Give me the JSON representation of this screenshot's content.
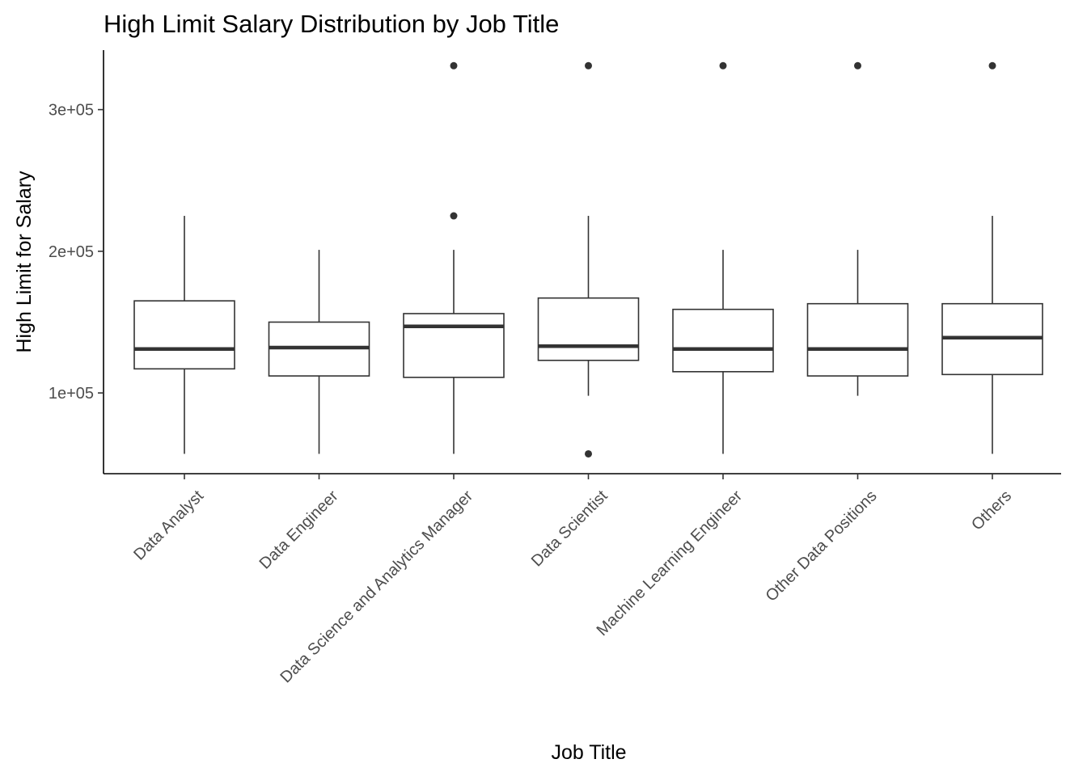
{
  "chart_data": {
    "type": "boxplot",
    "title": "High Limit Salary Distribution by Job Title",
    "xlabel": "Job Title",
    "ylabel": "High Limit for Salary",
    "ylim": [
      43000,
      342000
    ],
    "yticks": [
      100000,
      200000,
      300000
    ],
    "ytick_labels": [
      "1e+05",
      "2e+05",
      "3e+05"
    ],
    "grid": false,
    "legend": "none",
    "colors": {
      "box_stroke": "#333333",
      "box_fill": "#ffffff",
      "axis": "#000000",
      "tick_text": "#4d4d4d"
    },
    "categories": [
      "Data Analyst",
      "Data Engineer",
      "Data Science and Analytics Manager",
      "Data Scientist",
      "Machine Learning Engineer",
      "Other Data Positions",
      "Others"
    ],
    "boxes": [
      {
        "whisker_low": 57000,
        "q1": 117000,
        "median": 131000,
        "q3": 165000,
        "whisker_high": 225000,
        "outliers": []
      },
      {
        "whisker_low": 57000,
        "q1": 112000,
        "median": 132000,
        "q3": 150000,
        "whisker_high": 201000,
        "outliers": []
      },
      {
        "whisker_low": 57000,
        "q1": 111000,
        "median": 147000,
        "q3": 156000,
        "whisker_high": 201000,
        "outliers": [
          225000,
          331000
        ]
      },
      {
        "whisker_low": 98000,
        "q1": 123000,
        "median": 133000,
        "q3": 167000,
        "whisker_high": 225000,
        "outliers": [
          57000,
          331000
        ]
      },
      {
        "whisker_low": 57000,
        "q1": 115000,
        "median": 131000,
        "q3": 159000,
        "whisker_high": 201000,
        "outliers": [
          331000
        ]
      },
      {
        "whisker_low": 98000,
        "q1": 112000,
        "median": 131000,
        "q3": 163000,
        "whisker_high": 201000,
        "outliers": [
          331000
        ]
      },
      {
        "whisker_low": 57000,
        "q1": 113000,
        "median": 139000,
        "q3": 163000,
        "whisker_high": 225000,
        "outliers": [
          331000
        ]
      }
    ]
  }
}
